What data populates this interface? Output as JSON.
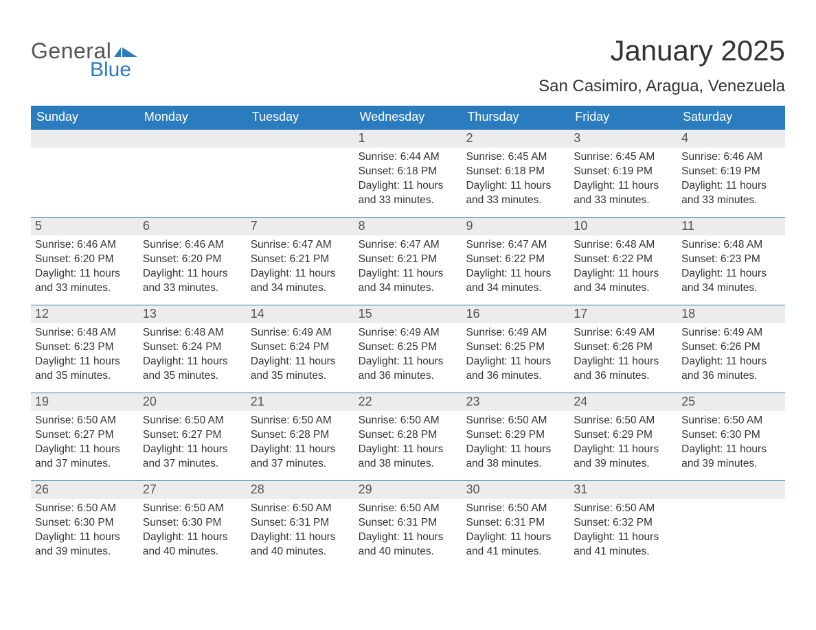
{
  "brand": {
    "word1": "General",
    "word2": "Blue",
    "accent_color": "#2b7bbf",
    "text_color": "#555555"
  },
  "title": "January 2025",
  "location": "San Casimiro, Aragua, Venezuela",
  "colors": {
    "header_bg": "#2b7bbf",
    "header_text": "#ffffff",
    "daynum_bg": "#ececec",
    "daynum_text": "#555555",
    "body_text": "#333333",
    "row_divider": "#2b7bbf",
    "page_bg": "#ffffff"
  },
  "typography": {
    "title_fontsize": 42,
    "location_fontsize": 24,
    "weekday_fontsize": 18,
    "daynum_fontsize": 18,
    "body_fontsize": 15.5
  },
  "weekdays": [
    "Sunday",
    "Monday",
    "Tuesday",
    "Wednesday",
    "Thursday",
    "Friday",
    "Saturday"
  ],
  "weeks": [
    [
      {
        "day": "",
        "sunrise": "",
        "sunset": "",
        "daylight": ""
      },
      {
        "day": "",
        "sunrise": "",
        "sunset": "",
        "daylight": ""
      },
      {
        "day": "",
        "sunrise": "",
        "sunset": "",
        "daylight": ""
      },
      {
        "day": "1",
        "sunrise": "Sunrise: 6:44 AM",
        "sunset": "Sunset: 6:18 PM",
        "daylight": "Daylight: 11 hours and 33 minutes."
      },
      {
        "day": "2",
        "sunrise": "Sunrise: 6:45 AM",
        "sunset": "Sunset: 6:18 PM",
        "daylight": "Daylight: 11 hours and 33 minutes."
      },
      {
        "day": "3",
        "sunrise": "Sunrise: 6:45 AM",
        "sunset": "Sunset: 6:19 PM",
        "daylight": "Daylight: 11 hours and 33 minutes."
      },
      {
        "day": "4",
        "sunrise": "Sunrise: 6:46 AM",
        "sunset": "Sunset: 6:19 PM",
        "daylight": "Daylight: 11 hours and 33 minutes."
      }
    ],
    [
      {
        "day": "5",
        "sunrise": "Sunrise: 6:46 AM",
        "sunset": "Sunset: 6:20 PM",
        "daylight": "Daylight: 11 hours and 33 minutes."
      },
      {
        "day": "6",
        "sunrise": "Sunrise: 6:46 AM",
        "sunset": "Sunset: 6:20 PM",
        "daylight": "Daylight: 11 hours and 33 minutes."
      },
      {
        "day": "7",
        "sunrise": "Sunrise: 6:47 AM",
        "sunset": "Sunset: 6:21 PM",
        "daylight": "Daylight: 11 hours and 34 minutes."
      },
      {
        "day": "8",
        "sunrise": "Sunrise: 6:47 AM",
        "sunset": "Sunset: 6:21 PM",
        "daylight": "Daylight: 11 hours and 34 minutes."
      },
      {
        "day": "9",
        "sunrise": "Sunrise: 6:47 AM",
        "sunset": "Sunset: 6:22 PM",
        "daylight": "Daylight: 11 hours and 34 minutes."
      },
      {
        "day": "10",
        "sunrise": "Sunrise: 6:48 AM",
        "sunset": "Sunset: 6:22 PM",
        "daylight": "Daylight: 11 hours and 34 minutes."
      },
      {
        "day": "11",
        "sunrise": "Sunrise: 6:48 AM",
        "sunset": "Sunset: 6:23 PM",
        "daylight": "Daylight: 11 hours and 34 minutes."
      }
    ],
    [
      {
        "day": "12",
        "sunrise": "Sunrise: 6:48 AM",
        "sunset": "Sunset: 6:23 PM",
        "daylight": "Daylight: 11 hours and 35 minutes."
      },
      {
        "day": "13",
        "sunrise": "Sunrise: 6:48 AM",
        "sunset": "Sunset: 6:24 PM",
        "daylight": "Daylight: 11 hours and 35 minutes."
      },
      {
        "day": "14",
        "sunrise": "Sunrise: 6:49 AM",
        "sunset": "Sunset: 6:24 PM",
        "daylight": "Daylight: 11 hours and 35 minutes."
      },
      {
        "day": "15",
        "sunrise": "Sunrise: 6:49 AM",
        "sunset": "Sunset: 6:25 PM",
        "daylight": "Daylight: 11 hours and 36 minutes."
      },
      {
        "day": "16",
        "sunrise": "Sunrise: 6:49 AM",
        "sunset": "Sunset: 6:25 PM",
        "daylight": "Daylight: 11 hours and 36 minutes."
      },
      {
        "day": "17",
        "sunrise": "Sunrise: 6:49 AM",
        "sunset": "Sunset: 6:26 PM",
        "daylight": "Daylight: 11 hours and 36 minutes."
      },
      {
        "day": "18",
        "sunrise": "Sunrise: 6:49 AM",
        "sunset": "Sunset: 6:26 PM",
        "daylight": "Daylight: 11 hours and 36 minutes."
      }
    ],
    [
      {
        "day": "19",
        "sunrise": "Sunrise: 6:50 AM",
        "sunset": "Sunset: 6:27 PM",
        "daylight": "Daylight: 11 hours and 37 minutes."
      },
      {
        "day": "20",
        "sunrise": "Sunrise: 6:50 AM",
        "sunset": "Sunset: 6:27 PM",
        "daylight": "Daylight: 11 hours and 37 minutes."
      },
      {
        "day": "21",
        "sunrise": "Sunrise: 6:50 AM",
        "sunset": "Sunset: 6:28 PM",
        "daylight": "Daylight: 11 hours and 37 minutes."
      },
      {
        "day": "22",
        "sunrise": "Sunrise: 6:50 AM",
        "sunset": "Sunset: 6:28 PM",
        "daylight": "Daylight: 11 hours and 38 minutes."
      },
      {
        "day": "23",
        "sunrise": "Sunrise: 6:50 AM",
        "sunset": "Sunset: 6:29 PM",
        "daylight": "Daylight: 11 hours and 38 minutes."
      },
      {
        "day": "24",
        "sunrise": "Sunrise: 6:50 AM",
        "sunset": "Sunset: 6:29 PM",
        "daylight": "Daylight: 11 hours and 39 minutes."
      },
      {
        "day": "25",
        "sunrise": "Sunrise: 6:50 AM",
        "sunset": "Sunset: 6:30 PM",
        "daylight": "Daylight: 11 hours and 39 minutes."
      }
    ],
    [
      {
        "day": "26",
        "sunrise": "Sunrise: 6:50 AM",
        "sunset": "Sunset: 6:30 PM",
        "daylight": "Daylight: 11 hours and 39 minutes."
      },
      {
        "day": "27",
        "sunrise": "Sunrise: 6:50 AM",
        "sunset": "Sunset: 6:30 PM",
        "daylight": "Daylight: 11 hours and 40 minutes."
      },
      {
        "day": "28",
        "sunrise": "Sunrise: 6:50 AM",
        "sunset": "Sunset: 6:31 PM",
        "daylight": "Daylight: 11 hours and 40 minutes."
      },
      {
        "day": "29",
        "sunrise": "Sunrise: 6:50 AM",
        "sunset": "Sunset: 6:31 PM",
        "daylight": "Daylight: 11 hours and 40 minutes."
      },
      {
        "day": "30",
        "sunrise": "Sunrise: 6:50 AM",
        "sunset": "Sunset: 6:31 PM",
        "daylight": "Daylight: 11 hours and 41 minutes."
      },
      {
        "day": "31",
        "sunrise": "Sunrise: 6:50 AM",
        "sunset": "Sunset: 6:32 PM",
        "daylight": "Daylight: 11 hours and 41 minutes."
      },
      {
        "day": "",
        "sunrise": "",
        "sunset": "",
        "daylight": ""
      }
    ]
  ]
}
